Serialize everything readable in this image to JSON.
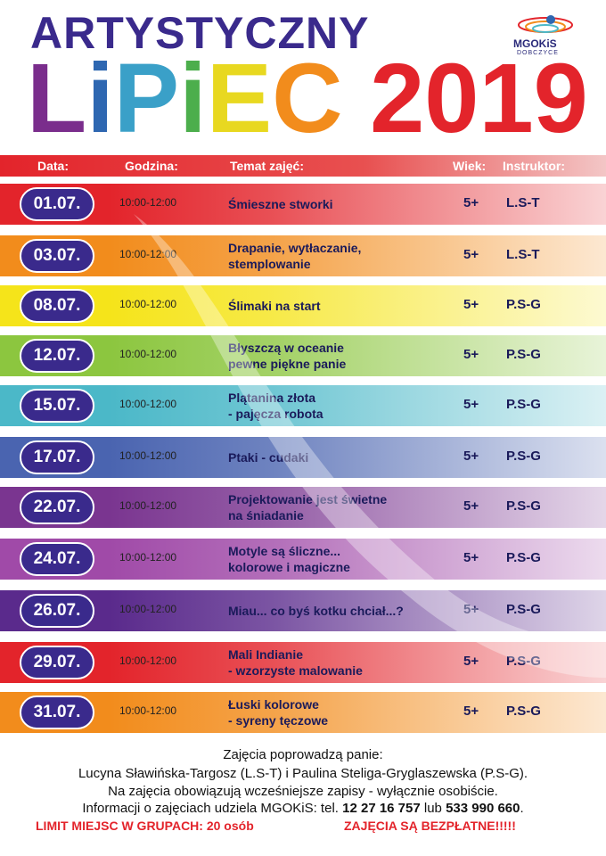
{
  "title_line1": "ARTYSTYCZNY",
  "title_line2_letters": [
    {
      "ch": "L",
      "color": "#7a2d8c"
    },
    {
      "ch": "i",
      "color": "#2e67b1"
    },
    {
      "ch": "P",
      "color": "#3aa0c8"
    },
    {
      "ch": "i",
      "color": "#4cae4c"
    },
    {
      "ch": "E",
      "color": "#e8d820"
    },
    {
      "ch": "C",
      "color": "#f28c1c"
    }
  ],
  "title_year": "2019",
  "title_year_color": "#e3242b",
  "logo": {
    "name": "MGOKiS",
    "sub": "DOBCZYCE"
  },
  "headers": {
    "date": "Data:",
    "time": "Godzina:",
    "topic": "Temat zajęć:",
    "age": "Wiek:",
    "instructor": "Instruktor:"
  },
  "rows": [
    {
      "date": "01.07.",
      "time": "10:00-12:00",
      "topic": [
        "Śmieszne stworki"
      ],
      "age": "5+",
      "instructor": "L.S-T",
      "color": "#e3242b"
    },
    {
      "date": "03.07.",
      "time": "10:00-12:00",
      "topic": [
        "Drapanie, wytłaczanie,",
        "stemplowanie"
      ],
      "age": "5+",
      "instructor": "L.S-T",
      "color": "#f28c1c"
    },
    {
      "date": "08.07.",
      "time": "10:00-12:00",
      "topic": [
        "Ślimaki na start"
      ],
      "age": "5+",
      "instructor": "P.S-G",
      "color": "#f5e41a"
    },
    {
      "date": "12.07.",
      "time": "10:00-12:00",
      "topic": [
        "Błyszczą w oceanie",
        "pewne piękne panie"
      ],
      "age": "5+",
      "instructor": "P.S-G",
      "color": "#8cc63f"
    },
    {
      "date": "15.07.",
      "time": "10:00-12:00",
      "topic": [
        "Plątanina złota",
        "- pajęcza robota"
      ],
      "age": "5+",
      "instructor": "P.S-G",
      "color": "#4bb8c8"
    },
    {
      "date": "17.07.",
      "time": "10:00-12:00",
      "topic": [
        "Ptaki - cudaki"
      ],
      "age": "5+",
      "instructor": "P.S-G",
      "color": "#4a64b0"
    },
    {
      "date": "22.07.",
      "time": "10:00-12:00",
      "topic": [
        "Projektowanie jest świetne",
        "na śniadanie"
      ],
      "age": "5+",
      "instructor": "P.S-G",
      "color": "#7a3590"
    },
    {
      "date": "24.07.",
      "time": "10:00-12:00",
      "topic": [
        "Motyle są śliczne...",
        "kolorowe i magiczne"
      ],
      "age": "5+",
      "instructor": "P.S-G",
      "color": "#a04aa8"
    },
    {
      "date": "26.07.",
      "time": "10:00-12:00",
      "topic": [
        "Miau... co byś kotku chciał...?"
      ],
      "age": "5+",
      "instructor": "P.S-G",
      "color": "#5a2a8c"
    },
    {
      "date": "29.07.",
      "time": "10:00-12:00",
      "topic": [
        "Mali Indianie",
        "- wzorzyste malowanie"
      ],
      "age": "5+",
      "instructor": "P.S-G",
      "color": "#e3242b"
    },
    {
      "date": "31.07.",
      "time": "10:00-12:00",
      "topic": [
        "Łuski kolorowe",
        "- syreny tęczowe"
      ],
      "age": "5+",
      "instructor": "P.S-G",
      "color": "#f28c1c"
    }
  ],
  "footer": {
    "line1": "Zajęcia poprowadzą panie:",
    "line2": "Lucyna Sławińska-Targosz (L.S-T) i Paulina Steliga-Gryglaszewska (P.S-G).",
    "line3": "Na zajęcia obowiązują wcześniejsze zapisy - wyłącznie osobiście.",
    "line4_prefix": "Informacji o zajęciach udziela MGOKiS: tel. ",
    "phone1": "12 27 16 757",
    "line4_mid": " lub ",
    "phone2": "533 990 660",
    "line4_suffix": ".",
    "limit": "LIMIT MIEJSC W GRUPACH: 20 osób",
    "free": "ZAJĘCIA SĄ BEZPŁATNE!!!!!"
  }
}
